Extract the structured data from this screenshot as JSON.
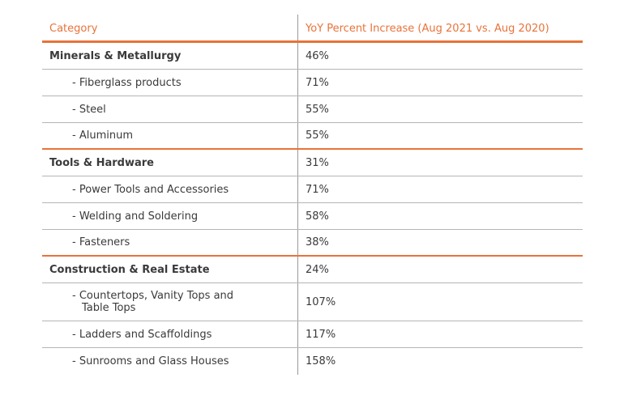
{
  "table": {
    "headers": {
      "category": "Category",
      "increase": "YoY Percent Increase (Aug 2021 vs. Aug 2020)"
    },
    "rows": [
      {
        "category": "Minerals & Metallurgy",
        "value": "46%"
      },
      {
        "category": "- Fiberglass products",
        "value": "71%"
      },
      {
        "category": "- Steel",
        "value": "55%"
      },
      {
        "category": "- Aluminum",
        "value": "55%"
      },
      {
        "category": "Tools & Hardware",
        "value": "31%"
      },
      {
        "category": "- Power Tools and Accessories",
        "value": "71%"
      },
      {
        "category": "- Welding and Soldering",
        "value": "58%"
      },
      {
        "category": "- Fasteners",
        "value": "38%"
      },
      {
        "category": "Construction & Real Estate",
        "value": "24%"
      },
      {
        "category_line1": "- Countertops, Vanity Tops and",
        "category_line2": "Table Tops",
        "value": "107%"
      },
      {
        "category": "- Ladders and Scaffoldings",
        "value": "117%"
      },
      {
        "category": "- Sunrooms and Glass Houses",
        "value": "158%"
      }
    ]
  },
  "colors": {
    "accent": "#e8733a",
    "text": "#3a3a3a",
    "divider": "#b5b5b5"
  }
}
